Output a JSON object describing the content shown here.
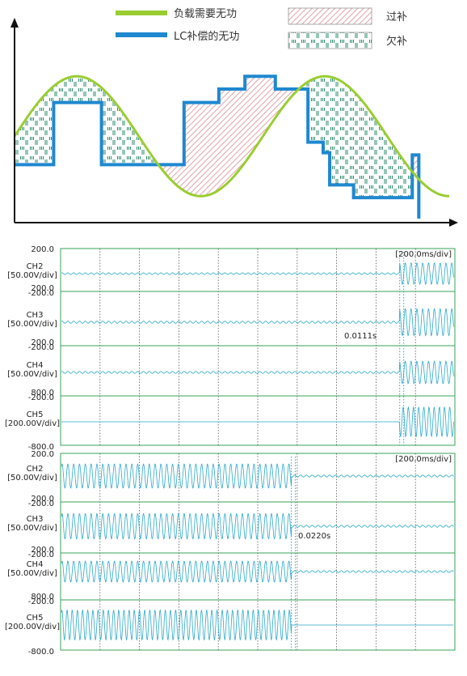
{
  "colors": {
    "load_curve": "#9acd32",
    "lc_step": "#1e88d0",
    "over_fill": "#d98a94",
    "under_fill": "#2e8b6e",
    "scope_frame": "#3aa35a",
    "trace": "#2aa9c9"
  },
  "chart_data": [
    {
      "type": "area",
      "legend": [
        {
          "key": "load",
          "name": "负载需要无功"
        },
        {
          "key": "lc",
          "name": "LC补偿的无功"
        },
        {
          "key": "over",
          "name": "过补"
        },
        {
          "key": "under",
          "name": "欠补"
        }
      ],
      "legend_position": "top",
      "x_range": [
        0,
        1
      ],
      "y_range": [
        -1,
        1
      ],
      "load_curve": {
        "shape": "sine",
        "cycles": 1.75,
        "amplitude": 0.8,
        "offset": 0.1
      },
      "lc_steps": [
        {
          "x0": 0.0,
          "x1": 0.09,
          "y": -0.28
        },
        {
          "x0": 0.09,
          "x1": 0.2,
          "y": 0.55
        },
        {
          "x0": 0.2,
          "x1": 0.39,
          "y": -0.28
        },
        {
          "x0": 0.39,
          "x1": 0.47,
          "y": 0.55
        },
        {
          "x0": 0.47,
          "x1": 0.53,
          "y": 0.73
        },
        {
          "x0": 0.53,
          "x1": 0.6,
          "y": 0.9
        },
        {
          "x0": 0.6,
          "x1": 0.675,
          "y": 0.73
        },
        {
          "x0": 0.675,
          "x1": 0.71,
          "y": 0.02
        },
        {
          "x0": 0.71,
          "x1": 0.725,
          "y": -0.12
        },
        {
          "x0": 0.725,
          "x1": 0.78,
          "y": -0.55
        },
        {
          "x0": 0.78,
          "x1": 0.915,
          "y": -0.72
        },
        {
          "x0": 0.915,
          "x1": 0.93,
          "y": -0.15
        }
      ]
    },
    {
      "type": "line",
      "timebase": "[200.0ms/div]",
      "annotation": "0.0111s",
      "transition_x_div": 8.6,
      "state_before": "low",
      "state_after": "high",
      "channels": [
        {
          "name": "CH2",
          "scale": "[50.00V/div]",
          "top": "200.0",
          "bottom": "-200.0",
          "low_amp": 0.04,
          "high_amp": 0.5
        },
        {
          "name": "CH3",
          "scale": "[50.00V/div]",
          "top": "200.0",
          "bottom": "-200.0",
          "low_amp": 0.04,
          "high_amp": 0.5
        },
        {
          "name": "CH4",
          "scale": "[50.00V/div]",
          "top": "200.0",
          "bottom": "-200.0",
          "low_amp": 0.04,
          "high_amp": 0.45
        },
        {
          "name": "CH5",
          "scale": "[200.00V/div]",
          "top": "800.0",
          "bottom": "-800.0",
          "low_amp": 0.0,
          "high_amp": 0.6
        }
      ]
    },
    {
      "type": "line",
      "timebase": "[200.0ms/div]",
      "annotation": "0.0220s",
      "transition_x_div": 5.85,
      "state_before": "high",
      "state_after": "low",
      "channels": [
        {
          "name": "CH2",
          "scale": "[50.00V/div]",
          "top": "200.0",
          "bottom": "-200.0",
          "low_amp": 0.04,
          "high_amp": 0.5
        },
        {
          "name": "CH3",
          "scale": "[50.00V/div]",
          "top": "200.0",
          "bottom": "-200.0",
          "low_amp": 0.04,
          "high_amp": 0.5
        },
        {
          "name": "CH4",
          "scale": "[50.00V/div]",
          "top": "200.0",
          "bottom": "-200.0",
          "low_amp": 0.04,
          "high_amp": 0.45
        },
        {
          "name": "CH5",
          "scale": "[200.00V/div]",
          "top": "800.0",
          "bottom": "-800.0",
          "low_amp": 0.0,
          "high_amp": 0.6
        }
      ]
    }
  ]
}
